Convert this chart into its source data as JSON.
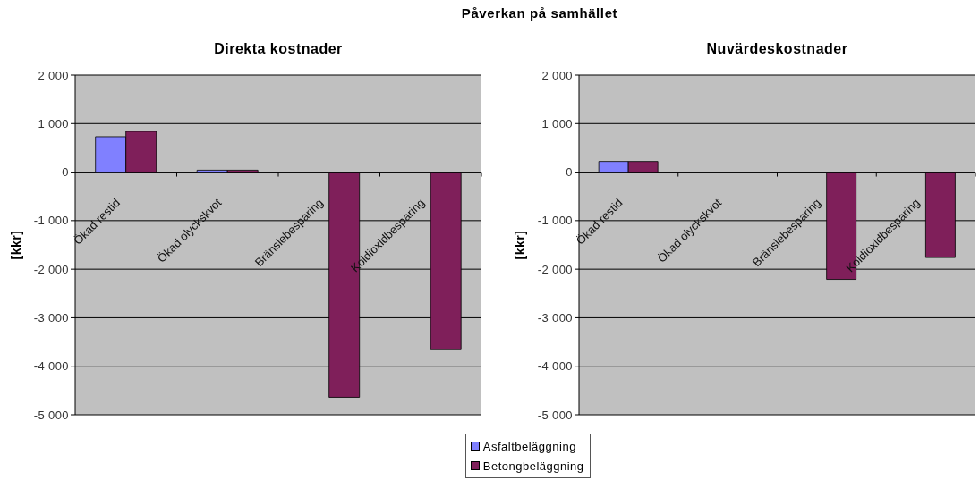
{
  "chart_data": [
    {
      "type": "bar",
      "title": "Direkta kostnader",
      "annotations": [
        "Påverkan på samhället"
      ],
      "ylabel": "[kkr]",
      "categories": [
        "Ökad restid",
        "Ökad olyckskvot",
        "Bränslebesparing",
        "Koldioxidbesparing"
      ],
      "series": [
        {
          "name": "Asfaltbeläggning",
          "color": "#8080ff",
          "values": [
            730,
            40,
            0,
            0
          ]
        },
        {
          "name": "Betongbeläggning",
          "color": "#7f1f5a",
          "values": [
            840,
            40,
            -4640,
            -3660
          ]
        }
      ],
      "ylim": [
        -5000,
        2000
      ],
      "yticks": [
        {
          "value": -5000,
          "label": "-5 000"
        },
        {
          "value": -4000,
          "label": "-4 000"
        },
        {
          "value": -3000,
          "label": "-3 000"
        },
        {
          "value": -2000,
          "label": "-2 000"
        },
        {
          "value": -1000,
          "label": "-1 000"
        },
        0,
        {
          "value": 1000,
          "label": "1 000"
        },
        {
          "value": 2000,
          "label": "2 000"
        }
      ],
      "grid": "y",
      "legend": "bottom"
    },
    {
      "type": "bar",
      "title": "Nuvärdeskostnader",
      "ylabel": "[kkr]",
      "categories": [
        "Ökad restid",
        "Ökad olyckskvot",
        "Bränslebesparing",
        "Koldioxidbesparing"
      ],
      "series": [
        {
          "name": "Asfaltbeläggning",
          "color": "#8080ff",
          "values": [
            220,
            0,
            0,
            0
          ]
        },
        {
          "name": "Betongbeläggning",
          "color": "#7f1f5a",
          "values": [
            220,
            0,
            -2210,
            -1760
          ]
        }
      ],
      "ylim": [
        -5000,
        2000
      ],
      "yticks": [
        {
          "value": -5000,
          "label": "-5 000"
        },
        {
          "value": -4000,
          "label": "-4 000"
        },
        {
          "value": -3000,
          "label": "-3 000"
        },
        {
          "value": -2000,
          "label": "-2 000"
        },
        {
          "value": -1000,
          "label": "-1 000"
        },
        0,
        {
          "value": 1000,
          "label": "1 000"
        },
        {
          "value": 2000,
          "label": "2 000"
        }
      ],
      "grid": "y",
      "legend": "bottom"
    }
  ]
}
